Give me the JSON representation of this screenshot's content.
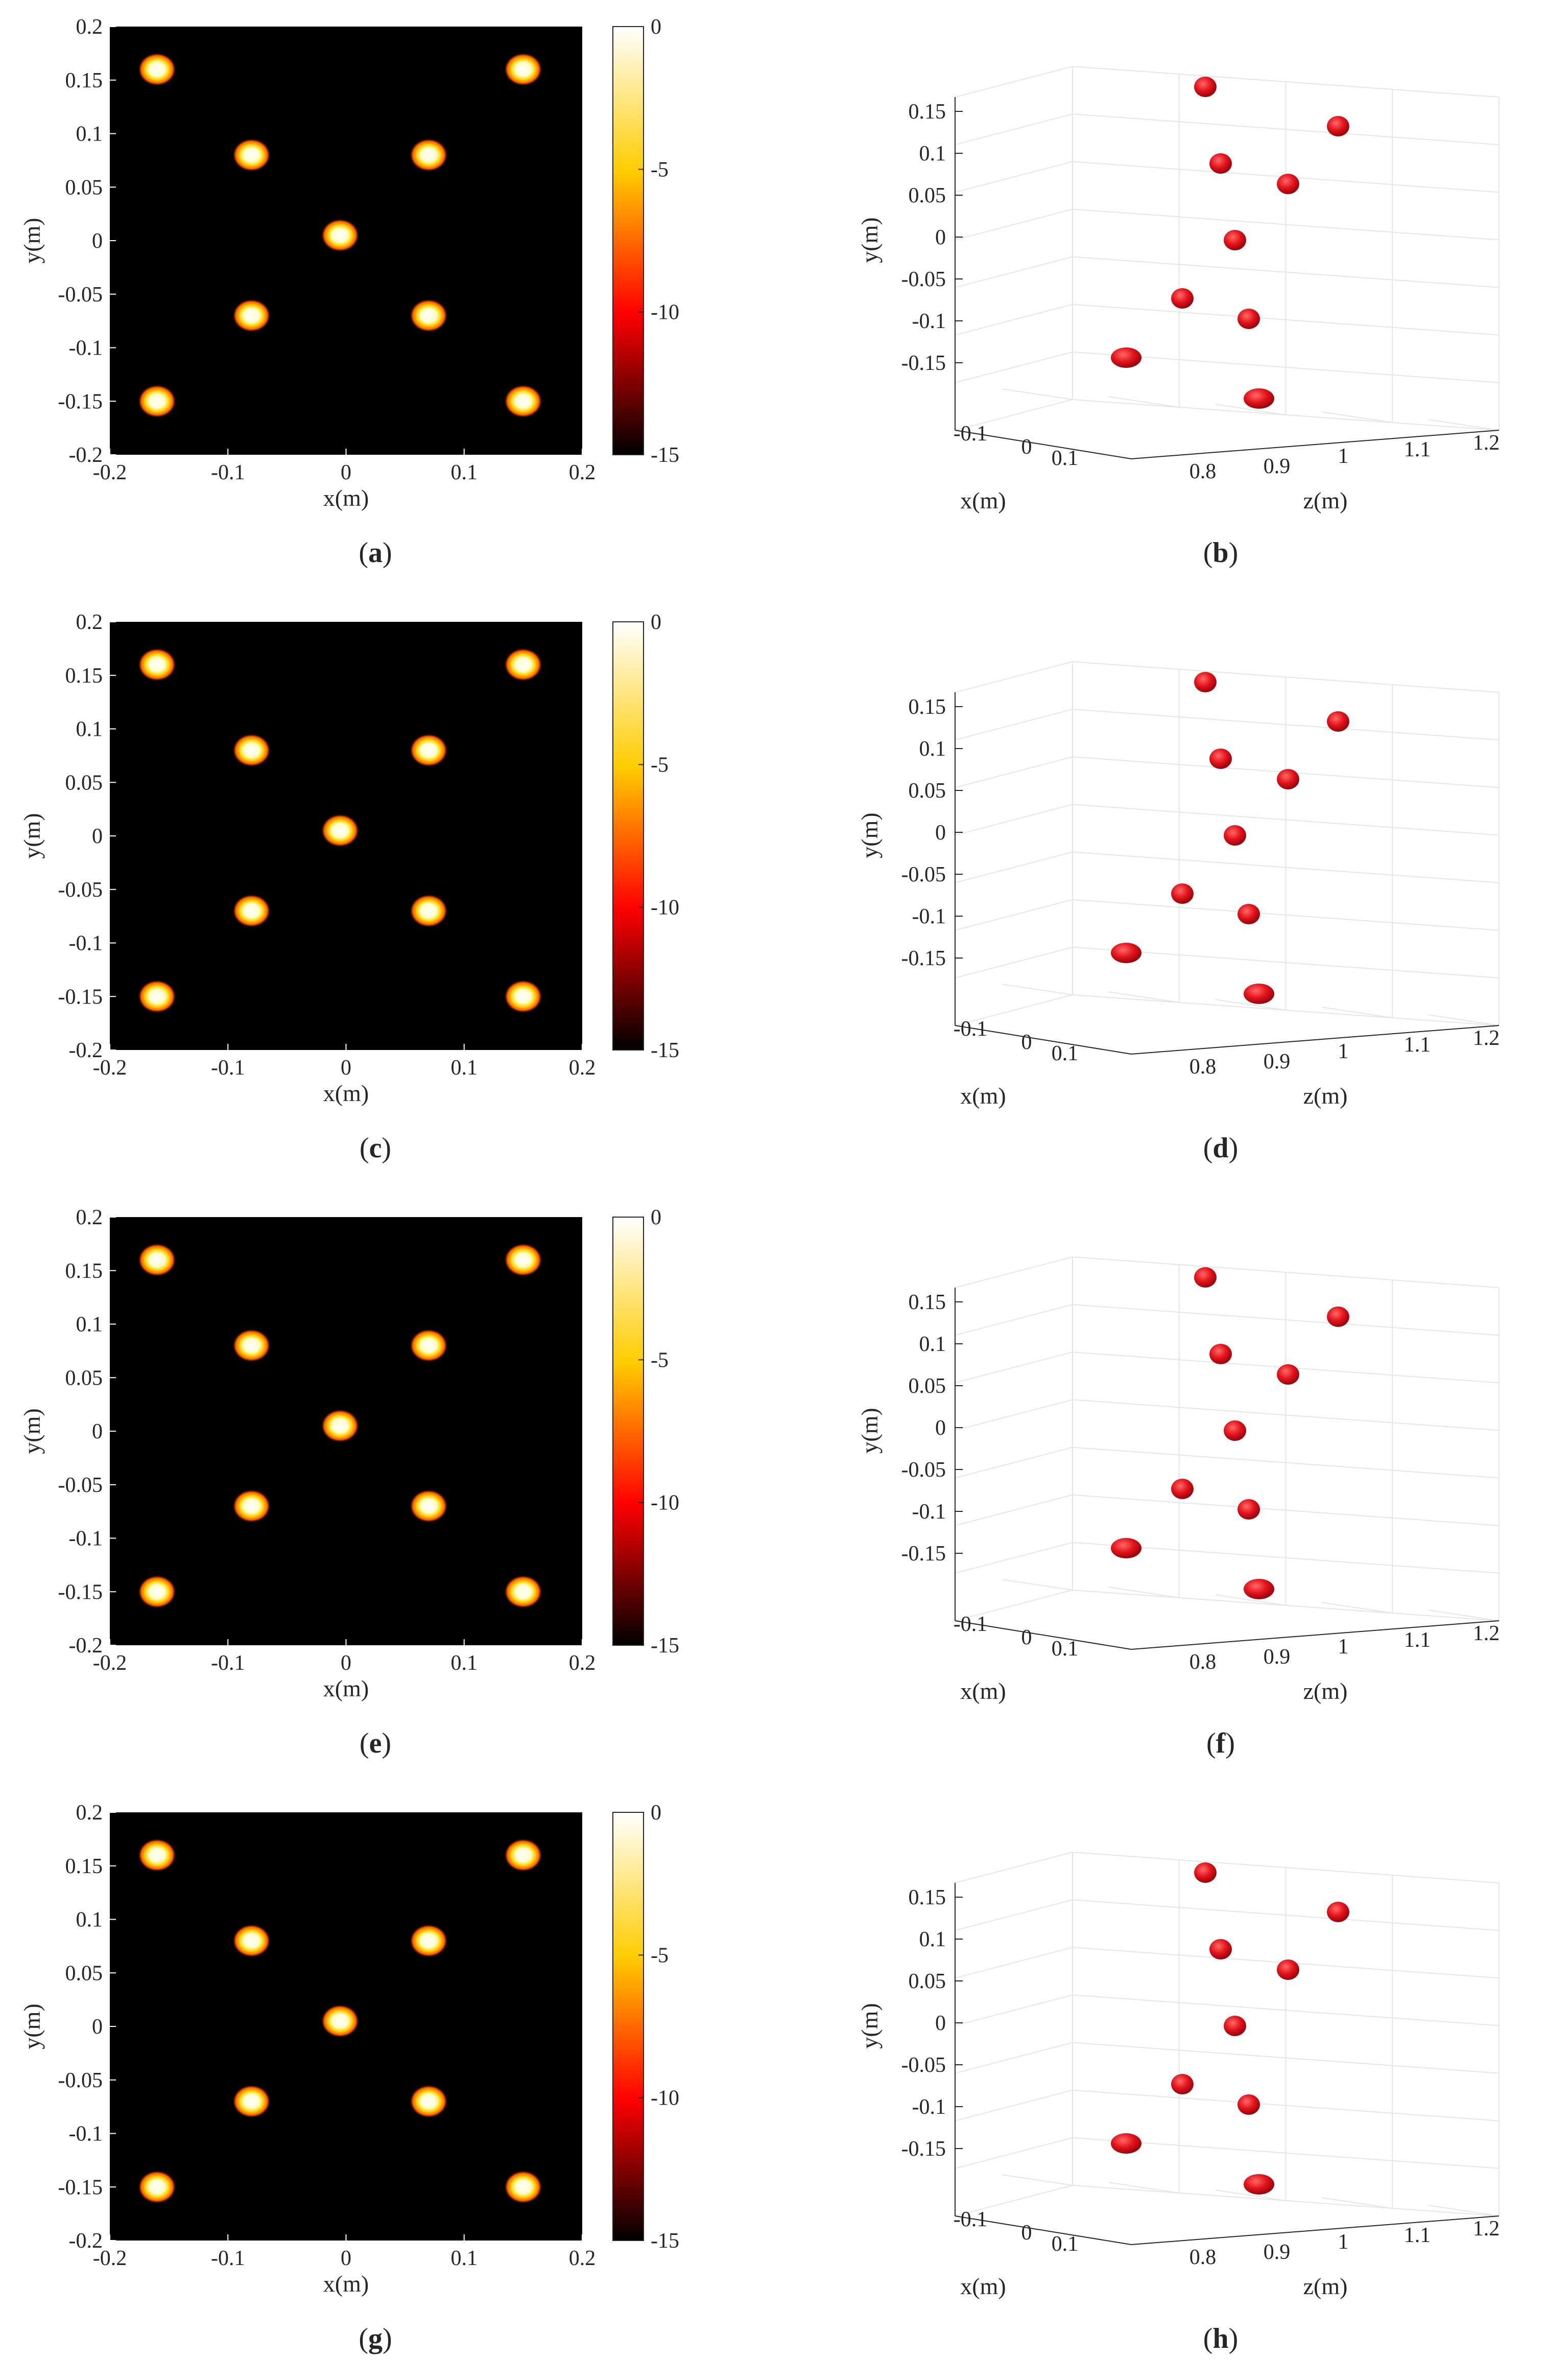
{
  "colors": {
    "background": "#000000",
    "point_core": "#ffffff",
    "point_glow": "#ffd000",
    "point_edge": "#ff4500",
    "blob": "#e3141c",
    "grid": "#e6e6e6",
    "axis": "#262626"
  },
  "colorbar": {
    "ticks": [
      "0",
      "-5",
      "-10",
      "-15"
    ],
    "colormap": "hot"
  },
  "labels": {
    "x2d": "x(m)",
    "y2d": "y(m)",
    "x3d": "x(m)",
    "y3d": "y(m)",
    "z3d": "z(m)"
  },
  "ticks": {
    "x2d": [
      "-0.2",
      "-0.1",
      "0",
      "0.1",
      "0.2"
    ],
    "y2d": [
      "0.2",
      "0.15",
      "0.1",
      "0.05",
      "0",
      "-0.05",
      "-0.1",
      "-0.15",
      "-0.2"
    ],
    "y3d": [
      "0.15",
      "0.1",
      "0.05",
      "0",
      "-0.05",
      "-0.1",
      "-0.15"
    ],
    "x3d": [
      "-0.1",
      "0",
      "0.1"
    ],
    "z3d": [
      "0.8",
      "0.9",
      "1",
      "1.1",
      "1.2"
    ]
  },
  "panels": [
    {
      "row": 0,
      "left": "a",
      "right": "b"
    },
    {
      "row": 1,
      "left": "c",
      "right": "d"
    },
    {
      "row": 2,
      "left": "e",
      "right": "f"
    },
    {
      "row": 3,
      "left": "g",
      "right": "h"
    }
  ],
  "chart_data": [
    {
      "type": "heatmap",
      "panel": "(a)",
      "xlabel": "x(m)",
      "ylabel": "y(m)",
      "xlim": [
        -0.2,
        0.2
      ],
      "ylim": [
        -0.2,
        0.2
      ],
      "clim": [
        -15,
        0
      ],
      "points": [
        {
          "x": -0.16,
          "y": 0.16
        },
        {
          "x": 0.15,
          "y": 0.16
        },
        {
          "x": -0.08,
          "y": 0.08
        },
        {
          "x": 0.07,
          "y": 0.08
        },
        {
          "x": -0.005,
          "y": 0.005
        },
        {
          "x": -0.08,
          "y": -0.07
        },
        {
          "x": 0.07,
          "y": -0.07
        },
        {
          "x": -0.16,
          "y": -0.15
        },
        {
          "x": 0.15,
          "y": -0.15
        }
      ]
    },
    {
      "type": "scatter",
      "panel": "(b)",
      "xlabel": "x(m)",
      "ylabel": "y(m)",
      "zlabel": "z(m)",
      "points": [
        {
          "y": 0.16
        },
        {
          "y": 0.12
        },
        {
          "y": 0.08
        },
        {
          "y": 0.06
        },
        {
          "y": 0.0
        },
        {
          "y": -0.07
        },
        {
          "y": -0.1
        },
        {
          "y": -0.15
        },
        {
          "y": -0.2
        }
      ]
    },
    {
      "type": "heatmap",
      "panel": "(c)",
      "xlabel": "x(m)",
      "ylabel": "y(m)",
      "xlim": [
        -0.2,
        0.2
      ],
      "ylim": [
        -0.2,
        0.2
      ],
      "clim": [
        -15,
        0
      ],
      "points": [
        {
          "x": -0.16,
          "y": 0.16
        },
        {
          "x": 0.15,
          "y": 0.16
        },
        {
          "x": -0.08,
          "y": 0.08
        },
        {
          "x": 0.07,
          "y": 0.08
        },
        {
          "x": -0.005,
          "y": 0.005
        },
        {
          "x": -0.08,
          "y": -0.07
        },
        {
          "x": 0.07,
          "y": -0.07
        },
        {
          "x": -0.16,
          "y": -0.15
        },
        {
          "x": 0.15,
          "y": -0.15
        }
      ]
    },
    {
      "type": "scatter",
      "panel": "(d)",
      "xlabel": "x(m)",
      "ylabel": "y(m)",
      "zlabel": "z(m)",
      "points": [
        {
          "y": 0.16
        },
        {
          "y": 0.12
        },
        {
          "y": 0.08
        },
        {
          "y": 0.06
        },
        {
          "y": 0.0
        },
        {
          "y": -0.07
        },
        {
          "y": -0.1
        },
        {
          "y": -0.15
        },
        {
          "y": -0.2
        }
      ]
    },
    {
      "type": "heatmap",
      "panel": "(e)",
      "xlabel": "x(m)",
      "ylabel": "y(m)",
      "xlim": [
        -0.2,
        0.2
      ],
      "ylim": [
        -0.2,
        0.2
      ],
      "clim": [
        -15,
        0
      ],
      "points": [
        {
          "x": -0.16,
          "y": 0.16
        },
        {
          "x": 0.15,
          "y": 0.16
        },
        {
          "x": -0.08,
          "y": 0.08
        },
        {
          "x": 0.07,
          "y": 0.08
        },
        {
          "x": -0.005,
          "y": 0.005
        },
        {
          "x": -0.08,
          "y": -0.07
        },
        {
          "x": 0.07,
          "y": -0.07
        },
        {
          "x": -0.16,
          "y": -0.15
        },
        {
          "x": 0.15,
          "y": -0.15
        }
      ]
    },
    {
      "type": "scatter",
      "panel": "(f)",
      "xlabel": "x(m)",
      "ylabel": "y(m)",
      "zlabel": "z(m)",
      "points": [
        {
          "y": 0.16
        },
        {
          "y": 0.12
        },
        {
          "y": 0.08
        },
        {
          "y": 0.06
        },
        {
          "y": 0.0
        },
        {
          "y": -0.07
        },
        {
          "y": -0.1
        },
        {
          "y": -0.15
        },
        {
          "y": -0.2
        }
      ]
    },
    {
      "type": "heatmap",
      "panel": "(g)",
      "xlabel": "x(m)",
      "ylabel": "y(m)",
      "xlim": [
        -0.2,
        0.2
      ],
      "ylim": [
        -0.2,
        0.2
      ],
      "clim": [
        -15,
        0
      ],
      "points": [
        {
          "x": -0.16,
          "y": 0.16
        },
        {
          "x": 0.15,
          "y": 0.16
        },
        {
          "x": -0.08,
          "y": 0.08
        },
        {
          "x": 0.07,
          "y": 0.08
        },
        {
          "x": -0.005,
          "y": 0.005
        },
        {
          "x": -0.08,
          "y": -0.07
        },
        {
          "x": 0.07,
          "y": -0.07
        },
        {
          "x": -0.16,
          "y": -0.15
        },
        {
          "x": 0.15,
          "y": -0.15
        }
      ]
    },
    {
      "type": "scatter",
      "panel": "(h)",
      "xlabel": "x(m)",
      "ylabel": "y(m)",
      "zlabel": "z(m)",
      "points": [
        {
          "y": 0.16
        },
        {
          "y": 0.12
        },
        {
          "y": 0.08
        },
        {
          "y": 0.06
        },
        {
          "y": 0.0
        },
        {
          "y": -0.07
        },
        {
          "y": -0.1
        },
        {
          "y": -0.15
        },
        {
          "y": -0.2
        }
      ]
    }
  ]
}
